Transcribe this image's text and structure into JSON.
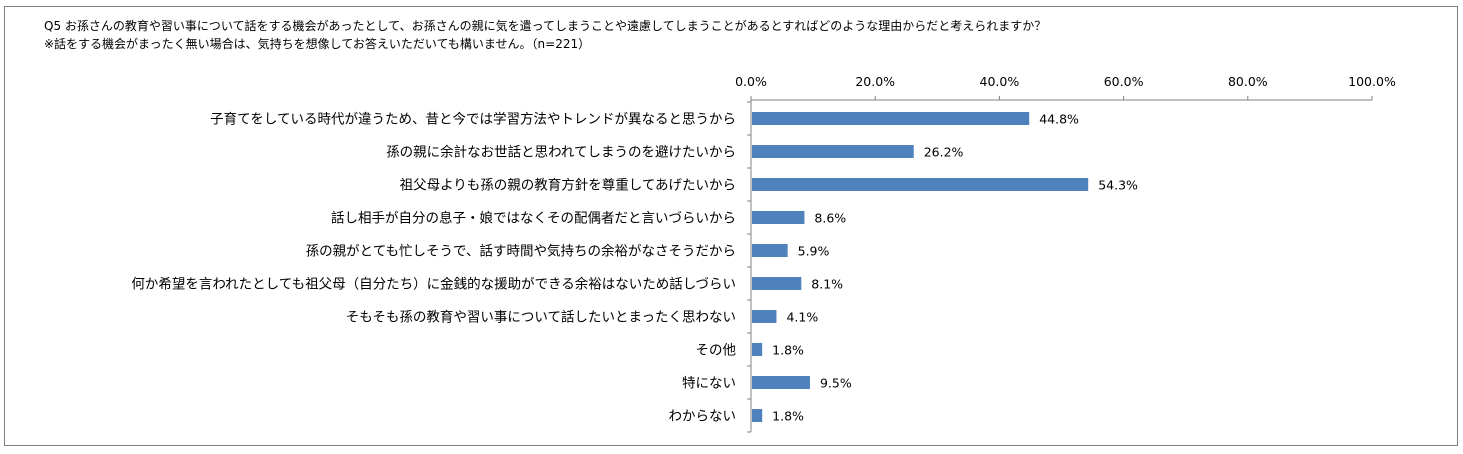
{
  "question": {
    "line1": "Q5 お孫さんの教育や習い事について話をする機会があったとして、お孫さんの親に気を遣ってしまうことや遠慮してしまうことがあるとすればどのような理由からだと考えられますか？",
    "line2": "※話をする機会がまったく無い場合は、気持ちを想像してお答えいただいても構いません。（n=221）"
  },
  "colors": {
    "bar": "#4f81bd",
    "axis": "#808080",
    "frame": "#7f7f7f"
  },
  "chart_data": {
    "type": "bar",
    "orientation": "horizontal",
    "title": "",
    "xlabel": "",
    "ylabel": "",
    "xlim": [
      0,
      100
    ],
    "tick_values": [
      0,
      20,
      40,
      60,
      80,
      100
    ],
    "tick_labels": [
      "0.0%",
      "20.0%",
      "40.0%",
      "60.0%",
      "80.0%",
      "100.0%"
    ],
    "axis_position": "top",
    "grid": false,
    "legend": "none",
    "categories": [
      "子育てをしている時代が違うため、昔と今では学習方法やトレンドが異なると思うから",
      "孫の親に余計なお世話と思われてしまうのを避けたいから",
      "祖父母よりも孫の親の教育方針を尊重してあげたいから",
      "話し相手が自分の息子・娘ではなくその配偶者だと言いづらいから",
      "孫の親がとても忙しそうで、話す時間や気持ちの余裕がなさそうだから",
      "何か希望を言われたとしても祖父母（自分たち）に金銭的な援助ができる余裕はないため話しづらい",
      "そもそも孫の教育や習い事について話したいとまったく思わない",
      "その他",
      "特にない",
      "わからない"
    ],
    "values": [
      44.8,
      26.2,
      54.3,
      8.6,
      5.9,
      8.1,
      4.1,
      1.8,
      9.5,
      1.8
    ],
    "value_labels": [
      "44.8%",
      "26.2%",
      "54.3%",
      "8.6%",
      "5.9%",
      "8.1%",
      "4.1%",
      "1.8%",
      "9.5%",
      "1.8%"
    ]
  }
}
